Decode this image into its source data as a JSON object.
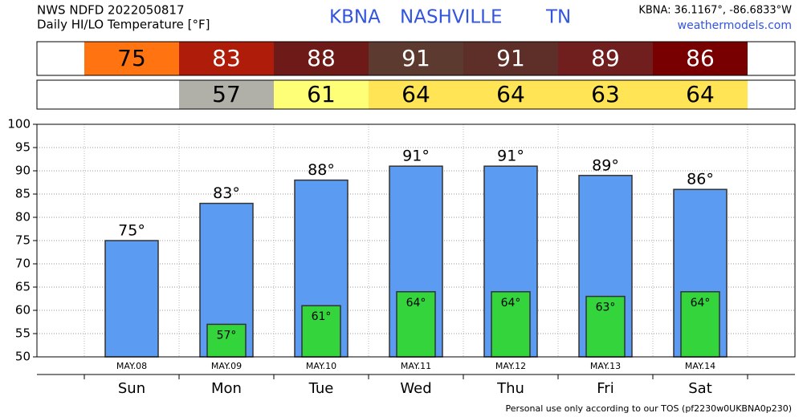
{
  "chart_data": {
    "type": "bar",
    "source": "NWS NDFD 2022050817",
    "title": "Daily HI/LO Temperature [°F]",
    "station": "KBNA",
    "city": "NASHVILLE",
    "state": "TN",
    "location": "KBNA: 36.1167°, -86.6833°W",
    "website": "weathermodels.com",
    "footer": "Personal use only according to our TOS (pf2230w0UKBNA0p230)",
    "categories": [
      "Sun",
      "Mon",
      "Tue",
      "Wed",
      "Thu",
      "Fri",
      "Sat"
    ],
    "dates": [
      "MAY.08",
      "MAY.09",
      "MAY.10",
      "MAY.11",
      "MAY.12",
      "MAY.13",
      "MAY.14"
    ],
    "series": [
      {
        "name": "HI",
        "color": "#5b9cf2",
        "values": [
          75,
          83,
          88,
          91,
          91,
          89,
          86
        ],
        "value_labels": [
          "75°",
          "83°",
          "88°",
          "91°",
          "91°",
          "89°",
          "86°"
        ],
        "strip_colors": [
          "#ff7410",
          "#b01c0a",
          "#6e1a18",
          "#5c3a30",
          "#5e2e28",
          "#701e1e",
          "#780000"
        ],
        "strip_text_colors": [
          "#000000",
          "#ffffff",
          "#ffffff",
          "#ffffff",
          "#ffffff",
          "#ffffff",
          "#ffffff"
        ]
      },
      {
        "name": "LO",
        "color": "#33d43c",
        "values": [
          null,
          57,
          61,
          64,
          64,
          63,
          64
        ],
        "value_labels": [
          null,
          "57°",
          "61°",
          "64°",
          "64°",
          "63°",
          "64°"
        ],
        "strip_colors": [
          null,
          "#b0b0a8",
          "#ffff77",
          "#ffe455",
          "#ffe455",
          "#ffe455",
          "#ffe455"
        ],
        "strip_text_colors": [
          null,
          "#000000",
          "#000000",
          "#000000",
          "#000000",
          "#000000",
          "#000000"
        ]
      }
    ],
    "ylim": [
      50,
      100
    ],
    "yticks": [
      50,
      55,
      60,
      65,
      70,
      75,
      80,
      85,
      90,
      95,
      100
    ],
    "grid": true
  }
}
